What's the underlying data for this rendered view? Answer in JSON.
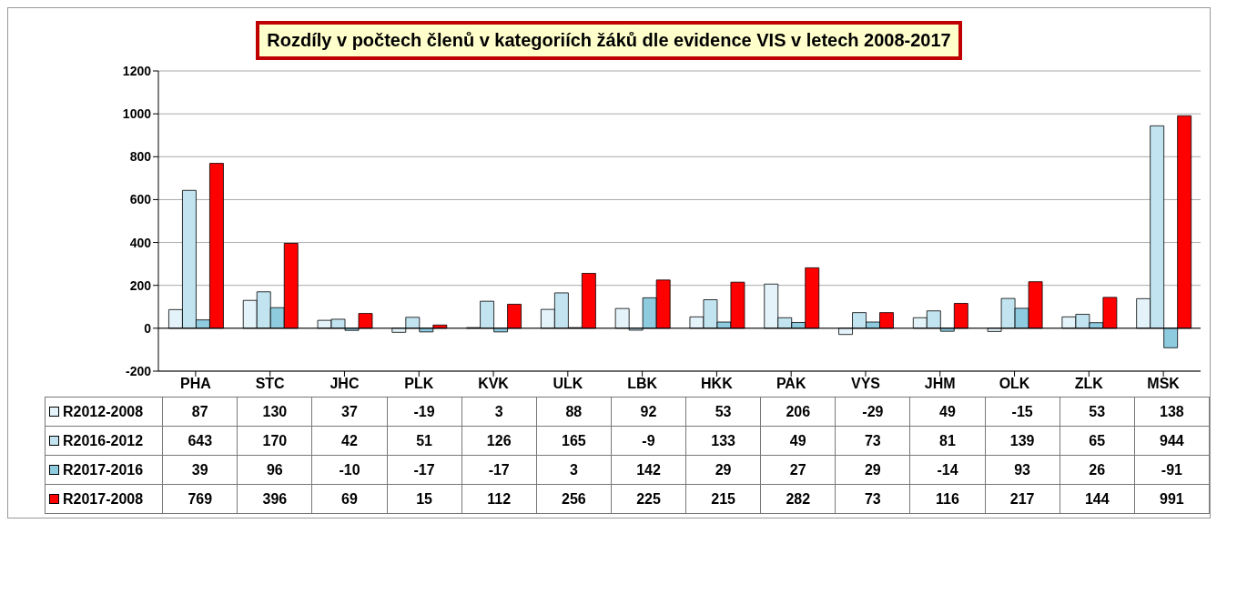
{
  "chart_data": {
    "type": "bar",
    "title": "Rozdíly v počtech členů v kategoriích žáků dle evidence VIS v letech 2008-2017",
    "categories": [
      "PHA",
      "STC",
      "JHC",
      "PLK",
      "KVK",
      "ULK",
      "LBK",
      "HKK",
      "PAK",
      "VYS",
      "JHM",
      "OLK",
      "ZLK",
      "MSK"
    ],
    "series": [
      {
        "name": "R2012-2008",
        "color": "#e3f3f9",
        "values": [
          87,
          130,
          37,
          -19,
          3,
          88,
          92,
          53,
          206,
          -29,
          49,
          -15,
          53,
          138
        ]
      },
      {
        "name": "R2016-2012",
        "color": "#c2e4f0",
        "values": [
          643,
          170,
          42,
          51,
          126,
          165,
          -9,
          133,
          49,
          73,
          81,
          139,
          65,
          944
        ]
      },
      {
        "name": "R2017-2016",
        "color": "#8ecbdf",
        "values": [
          39,
          96,
          -10,
          -17,
          -17,
          3,
          142,
          29,
          27,
          29,
          -14,
          93,
          26,
          -91
        ]
      },
      {
        "name": "R2017-2008",
        "color": "#ff0000",
        "values": [
          769,
          396,
          69,
          15,
          112,
          256,
          225,
          215,
          282,
          73,
          116,
          217,
          144,
          991
        ]
      }
    ],
    "ylim": [
      -200,
      1200
    ],
    "yticks": [
      -200,
      0,
      200,
      400,
      600,
      800,
      1000,
      1200
    ],
    "grid": "y",
    "legend": "bottom left",
    "data_labels": true
  }
}
